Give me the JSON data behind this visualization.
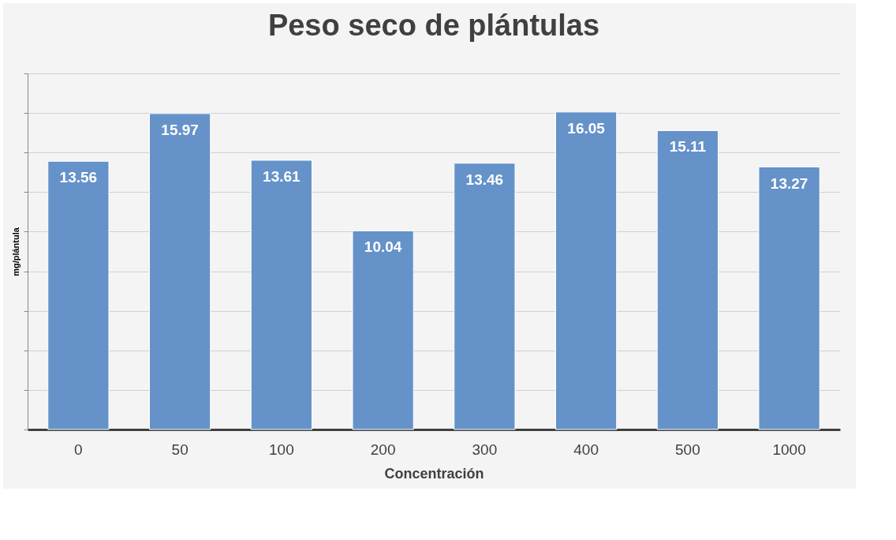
{
  "chart_data": {
    "type": "bar",
    "title": "Peso seco de plántulas",
    "xlabel": "Concentración",
    "ylabel": "mg/plántula",
    "categories": [
      "0",
      "50",
      "100",
      "200",
      "300",
      "400",
      "500",
      "1000"
    ],
    "values": [
      13.56,
      15.97,
      13.61,
      10.04,
      13.46,
      16.05,
      15.11,
      13.27
    ],
    "color": "#6592c9",
    "grid": "y",
    "tick_labels": "x",
    "data_labels": true
  }
}
